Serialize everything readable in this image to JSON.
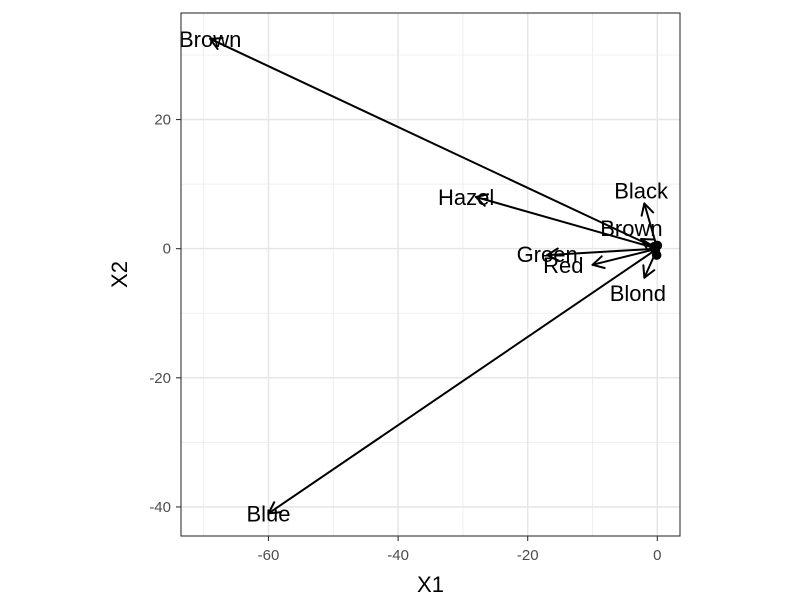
{
  "chart_data": {
    "type": "scatter",
    "title": "",
    "xlabel": "X1",
    "ylabel": "X2",
    "xlim": [
      -73.5,
      3.5
    ],
    "ylim": [
      -44.5,
      36.5
    ],
    "x_ticks": [
      -60,
      -40,
      -20,
      0
    ],
    "y_ticks": [
      -40,
      -20,
      0,
      20
    ],
    "x_tick_labels": [
      "-60",
      "-40",
      "-20",
      "0"
    ],
    "y_tick_labels": [
      "-40",
      "-20",
      "0",
      "20"
    ],
    "grid": true,
    "legend": "none",
    "origin_points": [
      {
        "x": 0.0,
        "y": 0.5
      },
      {
        "x": -0.5,
        "y": 0.3
      },
      {
        "x": -0.3,
        "y": -0.2
      },
      {
        "x": -0.1,
        "y": -1.0
      }
    ],
    "vectors": [
      {
        "label": "Brown",
        "x": -69.0,
        "y": 32.5,
        "kind": "eye"
      },
      {
        "label": "Blue",
        "x": -60.0,
        "y": -41.0,
        "kind": "eye"
      },
      {
        "label": "Hazel",
        "x": -28.0,
        "y": 8.0,
        "kind": "eye"
      },
      {
        "label": "Green",
        "x": -17.0,
        "y": -1.0,
        "kind": "eye"
      },
      {
        "label": "Black",
        "x": -2.0,
        "y": 7.0,
        "kind": "hair"
      },
      {
        "label": "Brown",
        "x": -2.5,
        "y": 1.5,
        "kind": "hair"
      },
      {
        "label": "Red",
        "x": -10.0,
        "y": -2.5,
        "kind": "hair"
      },
      {
        "label": "Blond",
        "x": -2.0,
        "y": -4.5,
        "kind": "hair"
      }
    ],
    "label_positions": [
      {
        "label": "Brown",
        "x": -69.0,
        "y": 32.5
      },
      {
        "label": "Blue",
        "x": -60.0,
        "y": -41.0
      },
      {
        "label": "Hazel",
        "x": -29.5,
        "y": 8.0
      },
      {
        "label": "Green",
        "x": -17.0,
        "y": -0.8
      },
      {
        "label": "Black",
        "x": -2.5,
        "y": 9.0
      },
      {
        "label": "Brown",
        "x": -4.0,
        "y": 3.2
      },
      {
        "label": "Red",
        "x": -14.5,
        "y": -2.5
      },
      {
        "label": "Blond",
        "x": -3.0,
        "y": -6.9
      }
    ]
  }
}
